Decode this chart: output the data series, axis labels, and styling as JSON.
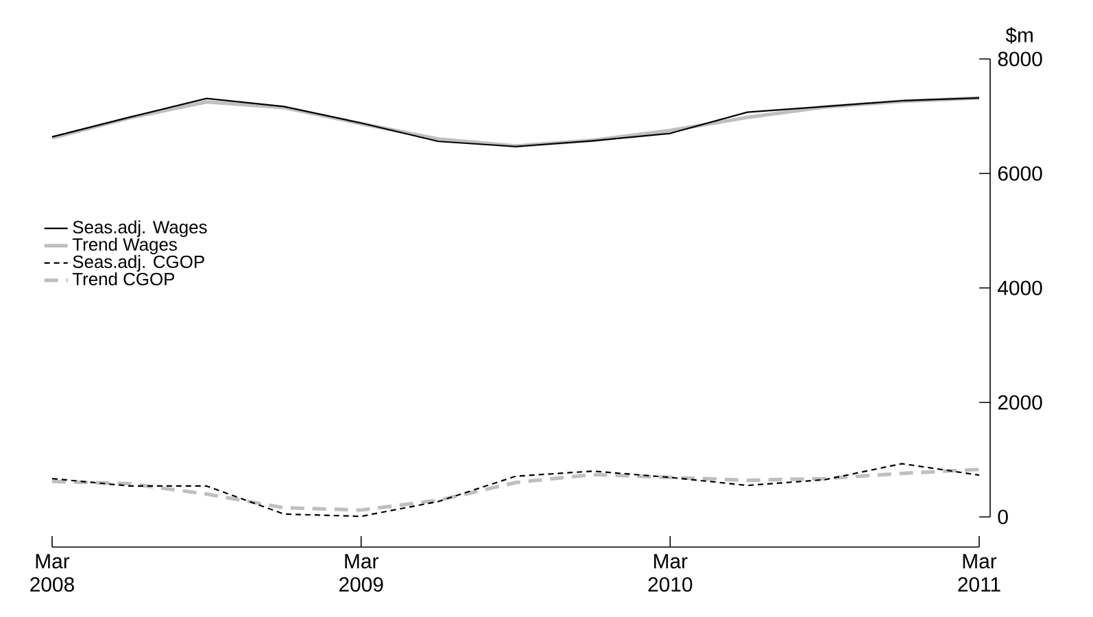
{
  "chart_data": {
    "type": "line",
    "ylabel": "$m",
    "x": [
      "2008-03",
      "2008-06",
      "2008-09",
      "2008-12",
      "2009-03",
      "2009-06",
      "2009-09",
      "2009-12",
      "2010-03",
      "2010-06",
      "2010-09",
      "2010-12",
      "2011-03"
    ],
    "xlim": [
      "2008-03",
      "2011-03"
    ],
    "xticks": [
      {
        "value": "2008-03",
        "label": "Mar 2008"
      },
      {
        "value": "2009-03",
        "label": "Mar 2009"
      },
      {
        "value": "2010-03",
        "label": "Mar 2010"
      },
      {
        "value": "2011-03",
        "label": "Mar 2011"
      }
    ],
    "ylim": [
      0,
      8000
    ],
    "yticks": [
      0,
      2000,
      4000,
      6000,
      8000
    ],
    "legend": "left",
    "grid": false,
    "series": [
      {
        "name": "Seas.adj. Wages",
        "color": "#000000",
        "line_style": "solid",
        "values": [
          6640,
          6980,
          7310,
          7170,
          6880,
          6560,
          6470,
          6570,
          6700,
          7070,
          7170,
          7270,
          7320
        ]
      },
      {
        "name": "Trend Wages",
        "color": "#bfbfbf",
        "line_style": "solid",
        "values": [
          6620,
          6970,
          7250,
          7150,
          6870,
          6600,
          6480,
          6580,
          6750,
          6980,
          7160,
          7260,
          7320
        ]
      },
      {
        "name": "Seas.adj. CGOP",
        "color": "#000000",
        "line_style": "dashed",
        "values": [
          670,
          540,
          540,
          50,
          10,
          270,
          710,
          800,
          690,
          550,
          650,
          930,
          730
        ]
      },
      {
        "name": "Trend CGOP",
        "color": "#bfbfbf",
        "line_style": "dashed",
        "values": [
          620,
          580,
          400,
          160,
          120,
          290,
          600,
          740,
          690,
          640,
          670,
          760,
          830
        ]
      }
    ]
  }
}
